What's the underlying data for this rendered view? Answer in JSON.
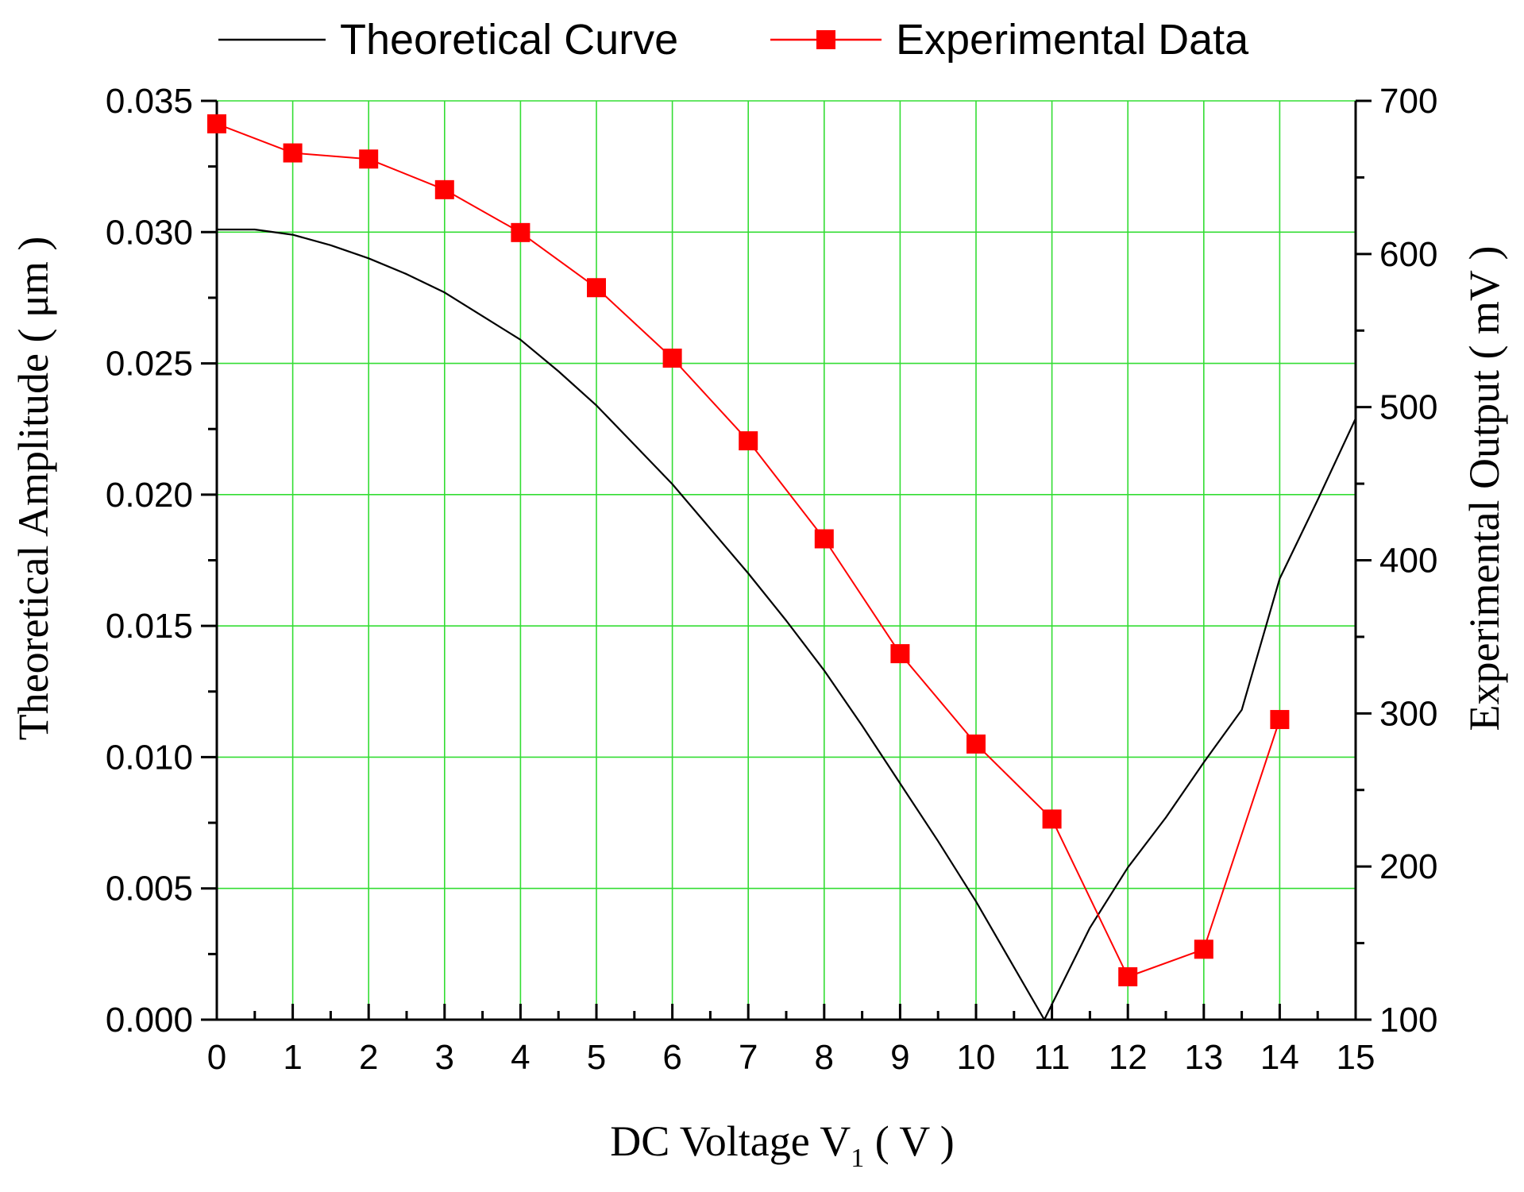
{
  "chart_data": {
    "type": "line",
    "title": "",
    "xlabel": "DC Voltage V",
    "xlabel_subscript": "1",
    "xlabel_unit": " ( V )",
    "ylabel_left": "Theoretical Amplitude ( μm )",
    "ylabel_right": "Experimental Output ( mV )",
    "xlim": [
      0,
      15
    ],
    "ylim_left": [
      0,
      0.035
    ],
    "ylim_right": [
      100,
      700
    ],
    "grid": true,
    "legend_position": "top",
    "x_ticks": [
      "0",
      "1",
      "2",
      "3",
      "4",
      "5",
      "6",
      "7",
      "8",
      "9",
      "10",
      "11",
      "12",
      "13",
      "14",
      "15"
    ],
    "y_left_ticks": [
      "0.000",
      "0.005",
      "0.010",
      "0.015",
      "0.020",
      "0.025",
      "0.030",
      "0.035"
    ],
    "y_right_ticks": [
      "100",
      "200",
      "300",
      "400",
      "500",
      "600",
      "700"
    ],
    "series": [
      {
        "name": "Theoretical Curve",
        "axis": "left",
        "color": "#000000",
        "marker": "none",
        "x": [
          0,
          0.5,
          1,
          1.5,
          2,
          2.5,
          3,
          3.5,
          4,
          4.5,
          5,
          5.5,
          6,
          6.5,
          7,
          7.5,
          8,
          8.5,
          9,
          9.5,
          10,
          10.5,
          10.9,
          11.5,
          12,
          12.5,
          13,
          13.5,
          14,
          14.5,
          15
        ],
        "y": [
          0.0301,
          0.0301,
          0.0299,
          0.0295,
          0.029,
          0.0284,
          0.0277,
          0.0268,
          0.0259,
          0.0247,
          0.0234,
          0.0219,
          0.0204,
          0.0187,
          0.017,
          0.0152,
          0.0133,
          0.0112,
          0.009,
          0.0068,
          0.0045,
          0.002,
          0.0,
          0.0035,
          0.0058,
          0.0077,
          0.0098,
          0.0118,
          0.0168,
          0.0198,
          0.0229
        ]
      },
      {
        "name": "Experimental Data",
        "axis": "right",
        "color": "#ff0000",
        "marker": "square",
        "x": [
          0,
          1,
          2,
          3,
          4,
          5,
          6,
          7,
          8,
          9,
          10,
          11,
          12,
          13,
          14
        ],
        "y": [
          685,
          666,
          662,
          642,
          614,
          578,
          532,
          478,
          414,
          339,
          280,
          231,
          128,
          146,
          296
        ]
      }
    ]
  }
}
